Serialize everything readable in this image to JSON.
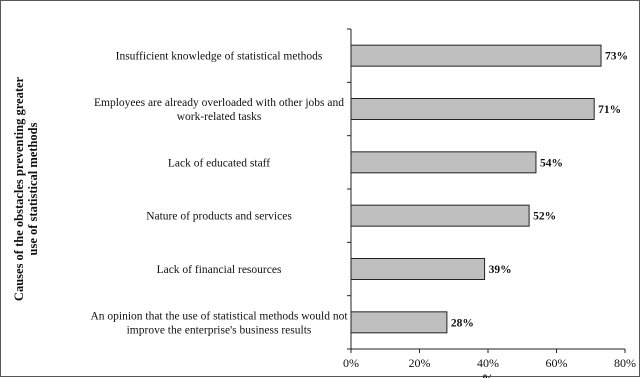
{
  "chart_data": {
    "type": "bar",
    "orientation": "horizontal",
    "categories": [
      [
        "Insufficient knowledge of statistical methods"
      ],
      [
        "Employees are already overloaded with other jobs and",
        "work-related tasks"
      ],
      [
        "Lack of educated staff"
      ],
      [
        "Nature of products and services"
      ],
      [
        "Lack of financial resources"
      ],
      [
        "An opinion that the use of statistical methods would not",
        "improve the enterprise's business results"
      ]
    ],
    "values": [
      73,
      71,
      54,
      52,
      39,
      28
    ],
    "value_labels": [
      "73%",
      "71%",
      "54%",
      "52%",
      "39%",
      "28%"
    ],
    "xlabel": "%",
    "ylabel": [
      "Causes of the obstacles preventing greater",
      "use of statistical methods"
    ],
    "xlim": [
      0,
      80
    ],
    "xticks": [
      0,
      20,
      40,
      60,
      80
    ],
    "xtick_labels": [
      "0%",
      "20%",
      "40%",
      "60%",
      "80%"
    ],
    "grid": false,
    "bar_color": "#bfbfbf",
    "bar_edge_color": "#222222"
  }
}
